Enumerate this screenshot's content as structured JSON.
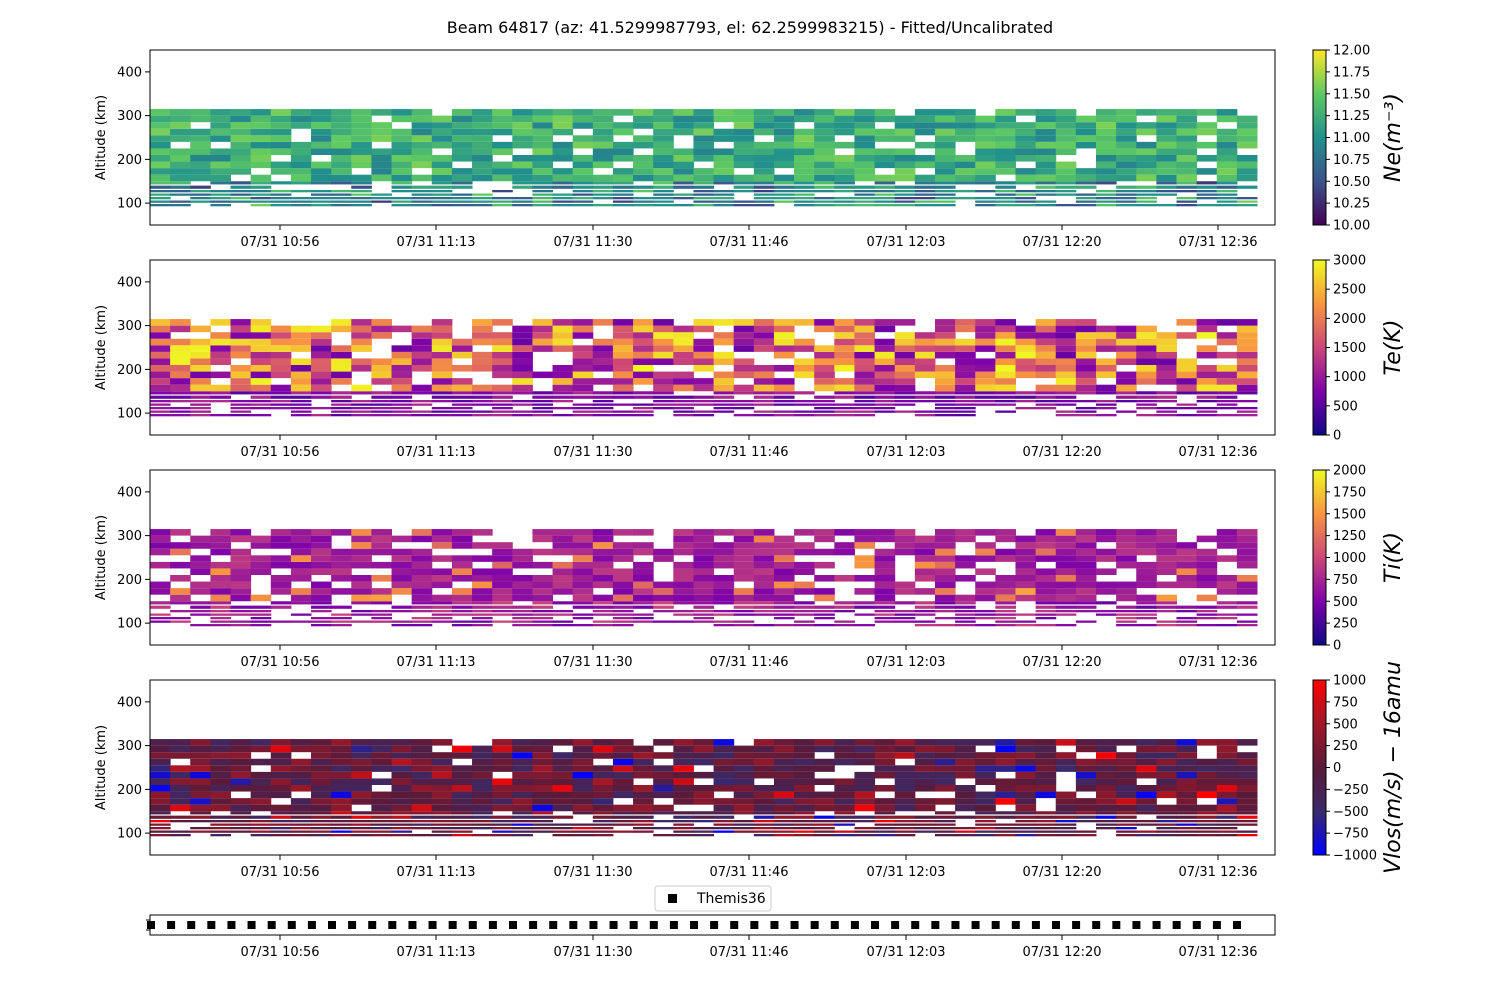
{
  "figure": {
    "title": "Beam 64817 (az: 41.5299987793, el: 62.2599983215) - Fitted/Uncalibrated"
  },
  "chart_data": [
    {
      "type": "heatmap",
      "name": "ne-panel",
      "ylabel": "Altitude (km)",
      "yticks": [
        100,
        200,
        300,
        400
      ],
      "ylim": [
        50,
        450
      ],
      "xticks": [
        "07/31 10:56",
        "07/31 11:13",
        "07/31 11:30",
        "07/31 11:46",
        "07/31 12:03",
        "07/31 12:20",
        "07/31 12:36"
      ],
      "xlim": [
        "07/31 10:42",
        "07/31 12:46"
      ],
      "colorbar": {
        "label": "Ne(m⁻³)",
        "range": [
          10.0,
          12.0
        ],
        "ticks": [
          "10.00",
          "10.25",
          "10.50",
          "10.75",
          "11.00",
          "11.25",
          "11.50",
          "11.75",
          "12.00"
        ],
        "colormap": "viridis-like",
        "stops": [
          "#440154",
          "#3b528b",
          "#21918c",
          "#5ec962",
          "#fde725"
        ]
      }
    },
    {
      "type": "heatmap",
      "name": "te-panel",
      "ylabel": "Altitude (km)",
      "yticks": [
        100,
        200,
        300,
        400
      ],
      "ylim": [
        50,
        450
      ],
      "xticks": [
        "07/31 10:56",
        "07/31 11:13",
        "07/31 11:30",
        "07/31 11:46",
        "07/31 12:03",
        "07/31 12:20",
        "07/31 12:36"
      ],
      "xlim": [
        "07/31 10:42",
        "07/31 12:46"
      ],
      "colorbar": {
        "label": "Te(K)",
        "range": [
          0,
          3000
        ],
        "ticks": [
          "0",
          "500",
          "1000",
          "1500",
          "2000",
          "2500",
          "3000"
        ],
        "colormap": "plasma",
        "stops": [
          "#0d0887",
          "#7e03a8",
          "#cc4778",
          "#f89540",
          "#f0f921"
        ]
      }
    },
    {
      "type": "heatmap",
      "name": "ti-panel",
      "ylabel": "Altitude (km)",
      "yticks": [
        100,
        200,
        300,
        400
      ],
      "ylim": [
        50,
        450
      ],
      "xticks": [
        "07/31 10:56",
        "07/31 11:13",
        "07/31 11:30",
        "07/31 11:46",
        "07/31 12:03",
        "07/31 12:20",
        "07/31 12:36"
      ],
      "xlim": [
        "07/31 10:42",
        "07/31 12:46"
      ],
      "colorbar": {
        "label": "Ti(K)",
        "range": [
          0,
          2000
        ],
        "ticks": [
          "0",
          "250",
          "500",
          "750",
          "1000",
          "1250",
          "1500",
          "1750",
          "2000"
        ],
        "colormap": "plasma",
        "stops": [
          "#0d0887",
          "#7e03a8",
          "#cc4778",
          "#f89540",
          "#f0f921"
        ]
      }
    },
    {
      "type": "heatmap",
      "name": "vlos-panel",
      "ylabel": "Altitude (km)",
      "yticks": [
        100,
        200,
        300,
        400
      ],
      "ylim": [
        50,
        450
      ],
      "xticks": [
        "07/31 10:56",
        "07/31 11:13",
        "07/31 11:30",
        "07/31 11:46",
        "07/31 12:03",
        "07/31 12:20",
        "07/31 12:36"
      ],
      "xlim": [
        "07/31 10:42",
        "07/31 12:46"
      ],
      "colorbar": {
        "label": "Vlos(m/s) − 16amu",
        "range": [
          -1000,
          1000
        ],
        "ticks": [
          "−1000",
          "−750",
          "−500",
          "−250",
          "0",
          "250",
          "500",
          "750",
          "1000"
        ],
        "colormap": "blue-red",
        "stops": [
          "#0000ff",
          "#3a2a6a",
          "#5a1a3a",
          "#a01828",
          "#ff0000"
        ]
      }
    },
    {
      "type": "scatter",
      "name": "themis-track",
      "legend": [
        "Themis36"
      ],
      "legend_loc": "upper-center",
      "marker": "square",
      "xticks": [
        "07/31 10:56",
        "07/31 11:13",
        "07/31 11:30",
        "07/31 11:46",
        "07/31 12:03",
        "07/31 12:20",
        "07/31 12:36"
      ],
      "xlim": [
        "07/31 10:42",
        "07/31 12:46"
      ],
      "points": 55
    }
  ]
}
